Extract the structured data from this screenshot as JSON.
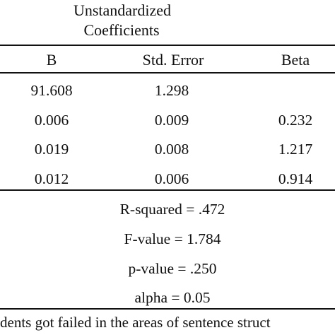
{
  "table": {
    "group_header": [
      "Unstandardized",
      "Coefficients"
    ],
    "columns": [
      "B",
      "Std. Error",
      "Beta"
    ],
    "rows": [
      [
        "91.608",
        "1.298",
        ""
      ],
      [
        "0.006",
        "0.009",
        "0.232"
      ],
      [
        "0.019",
        "0.008",
        "1.217"
      ],
      [
        "0.012",
        "0.006",
        "0.914"
      ]
    ]
  },
  "stats": [
    "R-squared = .472",
    "F-value = 1.784",
    "p-value = .250",
    "alpha = 0.05"
  ],
  "caption": "dents got failed in the areas of sentence struct"
}
